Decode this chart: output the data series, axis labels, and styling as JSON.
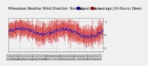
{
  "title_line1": "Milwaukee Weather Wind Direction  Normalized and Average (24 Hours) (New)",
  "background_color": "#f0f0f0",
  "plot_bg_color": "#f0f0f0",
  "bar_color": "#cc0000",
  "avg_color": "#0000cc",
  "num_points": 288,
  "ylim": [
    -1.25,
    1.25
  ],
  "yticks": [
    -1.0,
    0.0,
    1.0
  ],
  "ytick_labels": [
    "-1",
    "0",
    "1"
  ],
  "grid_color": "#aaaaaa",
  "title_fontsize": 3.5,
  "tick_fontsize": 2.8,
  "legend_fontsize": 3.0,
  "seed": 42,
  "bar_linewidth": 0.3,
  "avg_markersize": 0.8,
  "num_xticks": 49,
  "xtick_every": 6
}
